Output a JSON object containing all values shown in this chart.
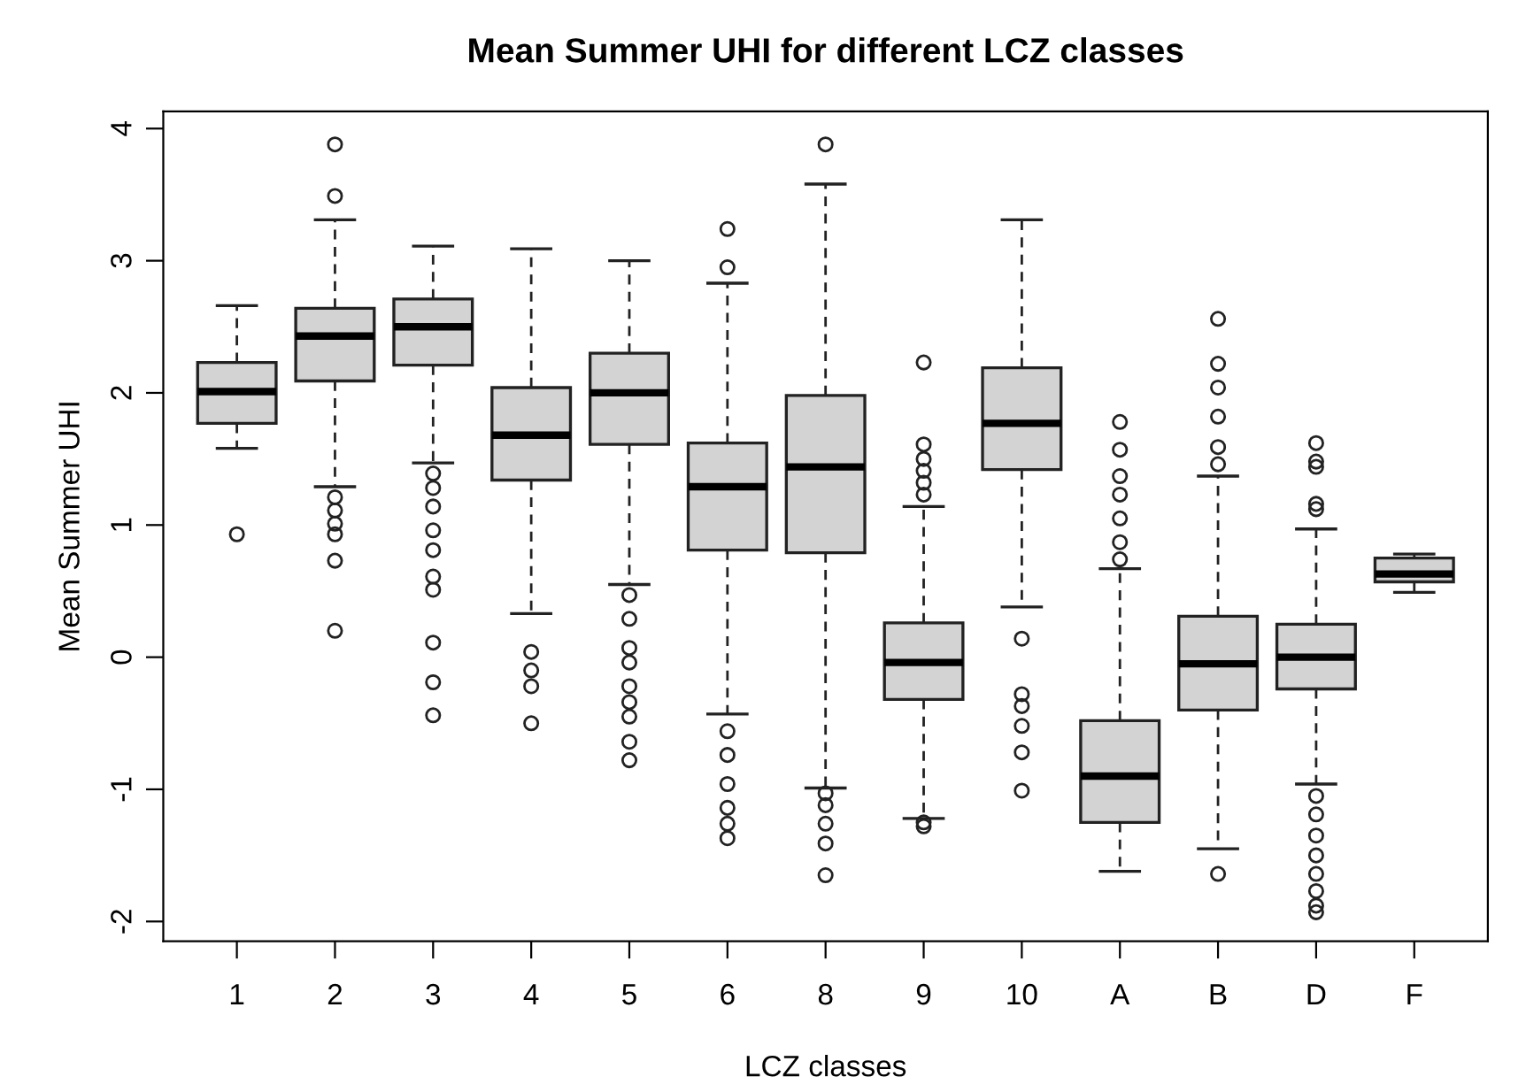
{
  "chart_data": {
    "type": "box",
    "title": "Mean Summer UHI for different LCZ classes",
    "xlabel": "LCZ classes",
    "ylabel": "Mean Summer UHI",
    "categories": [
      "1",
      "2",
      "3",
      "4",
      "5",
      "6",
      "8",
      "9",
      "10",
      "A",
      "B",
      "D",
      "F"
    ],
    "color": "#d3d3d3",
    "ylim": [
      -2.15,
      4.13
    ],
    "yticks": [
      -2,
      -1,
      0,
      1,
      2,
      3,
      4
    ],
    "grid": false,
    "legend": false,
    "marker": "circle",
    "boxes": [
      {
        "low": 1.58,
        "q1": 1.77,
        "median": 2.01,
        "q3": 2.23,
        "high": 2.66,
        "outliers": [
          0.93
        ]
      },
      {
        "low": 1.29,
        "q1": 2.09,
        "median": 2.43,
        "q3": 2.64,
        "high": 3.31,
        "outliers": [
          3.88,
          3.49,
          1.21,
          1.11,
          1.01,
          0.93,
          0.73,
          0.2
        ]
      },
      {
        "low": 1.47,
        "q1": 2.21,
        "median": 2.5,
        "q3": 2.71,
        "high": 3.11,
        "outliers": [
          1.39,
          1.28,
          1.14,
          0.96,
          0.81,
          0.61,
          0.51,
          0.11,
          -0.19,
          -0.44
        ]
      },
      {
        "low": 0.33,
        "q1": 1.34,
        "median": 1.68,
        "q3": 2.04,
        "high": 3.09,
        "outliers": [
          0.04,
          -0.1,
          -0.22,
          -0.5
        ]
      },
      {
        "low": 0.55,
        "q1": 1.61,
        "median": 2.0,
        "q3": 2.3,
        "high": 3.0,
        "outliers": [
          0.47,
          0.29,
          0.07,
          -0.04,
          -0.22,
          -0.34,
          -0.45,
          -0.64,
          -0.78
        ]
      },
      {
        "low": -0.43,
        "q1": 0.81,
        "median": 1.29,
        "q3": 1.62,
        "high": 2.83,
        "outliers": [
          3.24,
          2.95,
          -0.56,
          -0.74,
          -0.96,
          -1.14,
          -1.26,
          -1.37
        ]
      },
      {
        "low": -0.99,
        "q1": 0.79,
        "median": 1.44,
        "q3": 1.98,
        "high": 3.58,
        "outliers": [
          3.88,
          -1.03,
          -1.12,
          -1.26,
          -1.41,
          -1.65
        ]
      },
      {
        "low": -1.22,
        "q1": -0.32,
        "median": -0.04,
        "q3": 0.26,
        "high": 1.14,
        "outliers": [
          2.23,
          1.61,
          1.5,
          1.41,
          1.32,
          1.23,
          -1.25,
          -1.28
        ]
      },
      {
        "low": 0.38,
        "q1": 1.42,
        "median": 1.77,
        "q3": 2.19,
        "high": 3.31,
        "outliers": [
          0.14,
          -0.28,
          -0.37,
          -0.52,
          -0.72,
          -1.01
        ]
      },
      {
        "low": -1.62,
        "q1": -1.25,
        "median": -0.9,
        "q3": -0.48,
        "high": 0.67,
        "outliers": [
          1.78,
          1.57,
          1.37,
          1.23,
          1.05,
          0.87,
          0.74
        ]
      },
      {
        "low": -1.45,
        "q1": -0.4,
        "median": -0.05,
        "q3": 0.31,
        "high": 1.37,
        "outliers": [
          2.56,
          2.22,
          2.04,
          1.82,
          1.59,
          1.46,
          -1.64
        ]
      },
      {
        "low": -0.96,
        "q1": -0.24,
        "median": 0.0,
        "q3": 0.25,
        "high": 0.97,
        "outliers": [
          1.62,
          1.48,
          1.44,
          1.16,
          1.12,
          -1.05,
          -1.19,
          -1.35,
          -1.5,
          -1.64,
          -1.77,
          -1.88,
          -1.93
        ]
      },
      {
        "low": 0.49,
        "q1": 0.57,
        "median": 0.63,
        "q3": 0.75,
        "high": 0.78
      }
    ]
  }
}
